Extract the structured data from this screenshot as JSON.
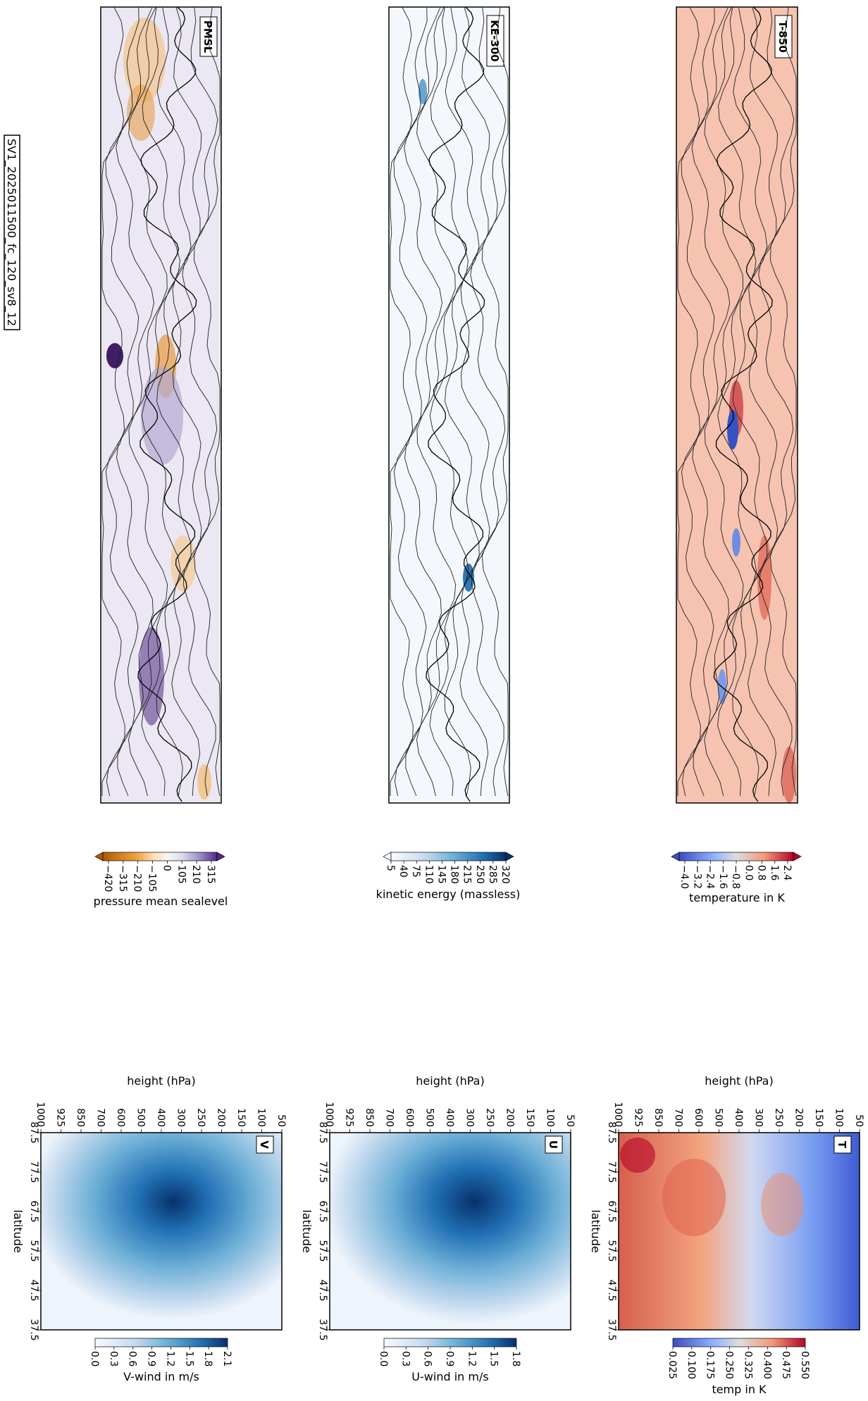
{
  "figure": {
    "title": "SV1_2025011500_fc_120_sv8_12"
  },
  "chart_data": [
    {
      "type": "heatmap",
      "panel": "PMSL",
      "subtitle": "PMSL",
      "colorbar": {
        "label": "pressure mean sealevel",
        "ticks": [
          "−420",
          "−315",
          "−210",
          "−105",
          "0",
          "105",
          "210",
          "315"
        ],
        "colors": [
          "#b35806",
          "#f1a340",
          "#fee0b6",
          "#f7f7f7",
          "#d8daeb",
          "#998ec3",
          "#542788"
        ]
      },
      "contours": true
    },
    {
      "type": "heatmap",
      "panel": "KE-300",
      "subtitle": "KE-300",
      "colorbar": {
        "label": "kinetic energy (massless)",
        "ticks": [
          "5",
          "40",
          "75",
          "110",
          "145",
          "180",
          "215",
          "250",
          "285",
          "320"
        ],
        "colors": [
          "#f7fbff",
          "#c6dbef",
          "#6baed6",
          "#2171b5",
          "#08306b"
        ]
      },
      "contours": true
    },
    {
      "type": "heatmap",
      "panel": "T-850",
      "subtitle": "T-850",
      "colorbar": {
        "label": "temperature in K",
        "ticks": [
          "−4.0",
          "−3.2",
          "−2.4",
          "−1.6",
          "−0.8",
          "0.0",
          "0.8",
          "1.6",
          "2.4"
        ],
        "colors": [
          "#3b4cc0",
          "#8db0fe",
          "#dddddd",
          "#f4987a",
          "#b40426"
        ]
      },
      "contours": true
    },
    {
      "type": "heatmap",
      "panel": "V",
      "subtitle": "V",
      "xlabel": "latitude",
      "ylabel": "height (hPa)",
      "x_ticks": [
        "87.5",
        "77.5",
        "67.5",
        "57.5",
        "47.5",
        "37.5"
      ],
      "y_ticks": [
        "1000",
        "925",
        "850",
        "700",
        "600",
        "500",
        "400",
        "300",
        "250",
        "200",
        "150",
        "100",
        "50"
      ],
      "colorbar": {
        "label": "V-wind in m/s",
        "ticks": [
          "0.0",
          "0.3",
          "0.6",
          "0.9",
          "1.2",
          "1.5",
          "1.8",
          "2.1"
        ],
        "colors": [
          "#f7fbff",
          "#c6dbef",
          "#6baed6",
          "#2171b5",
          "#08306b"
        ]
      },
      "peak": {
        "latitude": 70,
        "height_hPa": 300,
        "value": 2.2
      }
    },
    {
      "type": "heatmap",
      "panel": "U",
      "subtitle": "U",
      "xlabel": "latitude",
      "ylabel": "height (hPa)",
      "x_ticks": [
        "87.5",
        "77.5",
        "67.5",
        "57.5",
        "47.5",
        "37.5"
      ],
      "y_ticks": [
        "1000",
        "925",
        "850",
        "700",
        "600",
        "500",
        "400",
        "300",
        "250",
        "200",
        "150",
        "100",
        "50"
      ],
      "colorbar": {
        "label": "U-wind in m/s",
        "ticks": [
          "0.0",
          "0.3",
          "0.6",
          "0.9",
          "1.2",
          "1.5",
          "1.8"
        ],
        "colors": [
          "#f7fbff",
          "#c6dbef",
          "#6baed6",
          "#2171b5",
          "#08306b"
        ]
      },
      "peak": {
        "latitude": 67.5,
        "height_hPa": 300,
        "value": 1.9
      }
    },
    {
      "type": "heatmap",
      "panel": "T",
      "subtitle": "T",
      "xlabel": "latitude",
      "ylabel": "height (hPa)",
      "x_ticks": [
        "87.5",
        "77.5",
        "67.5",
        "57.5",
        "47.5",
        "37.5"
      ],
      "y_ticks": [
        "1000",
        "925",
        "850",
        "700",
        "600",
        "500",
        "400",
        "300",
        "250",
        "200",
        "150",
        "100",
        "50"
      ],
      "colorbar": {
        "label": "temp in K",
        "ticks": [
          "0.025",
          "0.100",
          "0.175",
          "0.250",
          "0.325",
          "0.400",
          "0.475",
          "0.550"
        ],
        "colors": [
          "#3b4cc0",
          "#8db0fe",
          "#dddddd",
          "#f4987a",
          "#b40426"
        ]
      },
      "peak": {
        "latitude": 85,
        "height_hPa": 925,
        "value": 0.55
      }
    }
  ]
}
